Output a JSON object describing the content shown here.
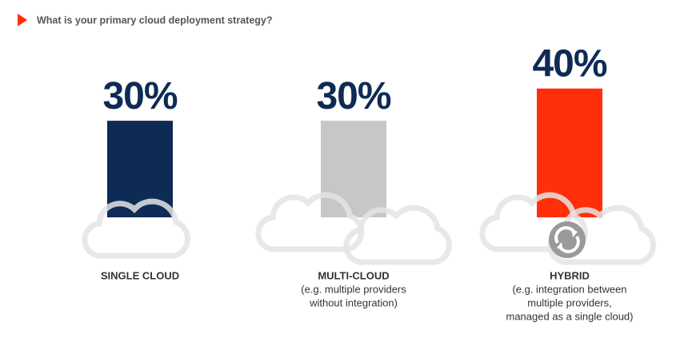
{
  "chart_data": {
    "type": "bar",
    "title": "What is your primary cloud deployment strategy?",
    "categories": [
      "SINGLE CLOUD",
      "MULTI-CLOUD",
      "HYBRID"
    ],
    "notes": [
      null,
      [
        "(e.g. multiple providers",
        "without integration)"
      ],
      [
        "(e.g. integration between",
        "multiple providers,",
        "managed as a single cloud)"
      ]
    ],
    "values": [
      30,
      30,
      40
    ],
    "value_labels": [
      "30%",
      "30%",
      "40%"
    ],
    "colors": [
      "#0d2b55",
      "#c6c7c9",
      "#ff2f0a"
    ]
  }
}
